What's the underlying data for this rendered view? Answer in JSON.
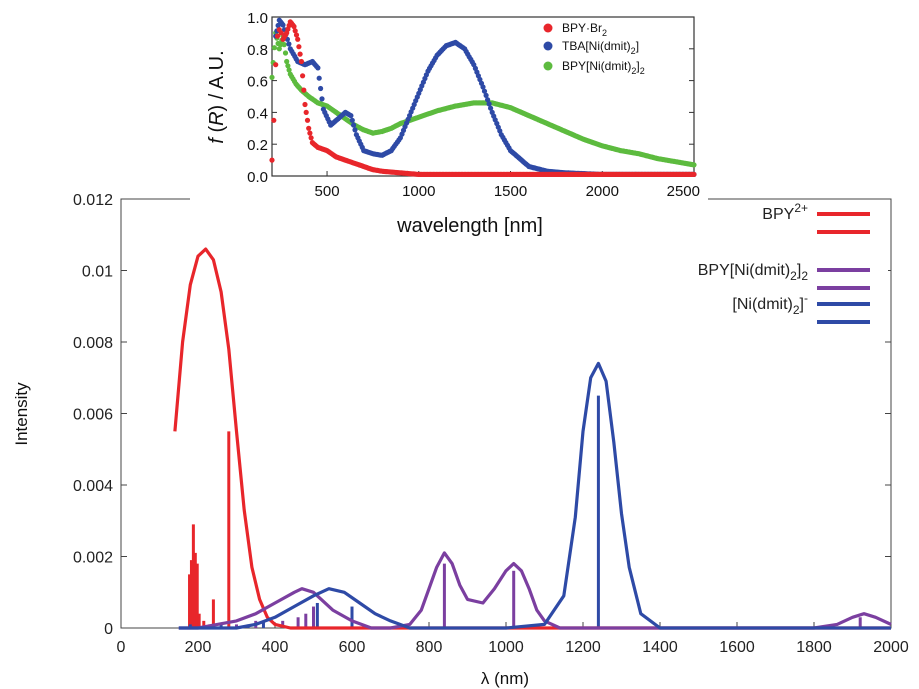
{
  "chart_data": [
    {
      "type": "line",
      "xlabel": "λ (nm)",
      "ylabel": "Intensity",
      "xlim": [
        0,
        2000
      ],
      "ylim": [
        0,
        0.012
      ],
      "x_ticks": [
        "0",
        "200",
        "400",
        "600",
        "800",
        "1000",
        "1200",
        "1400",
        "1600",
        "1800",
        "2000"
      ],
      "y_ticks": [
        "0",
        "0.002",
        "0.004",
        "0.006",
        "0.008",
        "0.01",
        "0.012"
      ],
      "legend_position": "top-right",
      "series": [
        {
          "name": "BPY2+",
          "legend_main": "BPY",
          "legend_sup": "2+",
          "color": "#e8262b",
          "envelope": [
            [
              140,
              0.0055
            ],
            [
              160,
              0.008
            ],
            [
              180,
              0.0096
            ],
            [
              200,
              0.0104
            ],
            [
              220,
              0.0106
            ],
            [
              240,
              0.0103
            ],
            [
              260,
              0.0094
            ],
            [
              280,
              0.0078
            ],
            [
              300,
              0.0055
            ],
            [
              320,
              0.0033
            ],
            [
              340,
              0.0017
            ],
            [
              360,
              0.0008
            ],
            [
              380,
              0.0003
            ],
            [
              400,
              0.0001
            ],
            [
              440,
              0.0
            ],
            [
              600,
              0.0
            ],
            [
              800,
              0.0
            ],
            [
              1000,
              0.0
            ],
            [
              1200,
              0.0
            ],
            [
              1400,
              0.0
            ],
            [
              1600,
              0.0
            ],
            [
              1800,
              0.0
            ],
            [
              2000,
              0.0
            ]
          ],
          "sticks": [
            [
              178,
              0.0015
            ],
            [
              183,
              0.0019
            ],
            [
              188,
              0.0029
            ],
            [
              193,
              0.0021
            ],
            [
              198,
              0.0018
            ],
            [
              203,
              0.0004
            ],
            [
              215,
              0.0002
            ],
            [
              230,
              0.0001
            ],
            [
              240,
              0.0008
            ],
            [
              280,
              0.0055
            ]
          ]
        },
        {
          "name": "BPY[Ni(dmit)2]2",
          "legend_main": "BPY[Ni(dmit)",
          "legend_sub": "2",
          "legend_end": "]",
          "legend_sub2": "2",
          "color": "#7b3fa0",
          "envelope": [
            [
              150,
              0.0
            ],
            [
              200,
              0.0
            ],
            [
              250,
              0.0001
            ],
            [
              300,
              0.0002
            ],
            [
              350,
              0.0004
            ],
            [
              400,
              0.0007
            ],
            [
              450,
              0.001
            ],
            [
              470,
              0.0011
            ],
            [
              500,
              0.001
            ],
            [
              550,
              0.0005
            ],
            [
              600,
              0.0002
            ],
            [
              650,
              0.0
            ],
            [
              700,
              0.0
            ],
            [
              750,
              0.0001
            ],
            [
              780,
              0.0005
            ],
            [
              800,
              0.0011
            ],
            [
              820,
              0.0017
            ],
            [
              840,
              0.0021
            ],
            [
              860,
              0.0018
            ],
            [
              880,
              0.0012
            ],
            [
              900,
              0.0008
            ],
            [
              940,
              0.0007
            ],
            [
              970,
              0.0011
            ],
            [
              1000,
              0.0016
            ],
            [
              1020,
              0.0018
            ],
            [
              1040,
              0.0016
            ],
            [
              1060,
              0.0011
            ],
            [
              1080,
              0.0005
            ],
            [
              1100,
              0.0002
            ],
            [
              1140,
              0.0
            ],
            [
              1200,
              0.0
            ],
            [
              1500,
              0.0
            ],
            [
              1800,
              0.0
            ],
            [
              1860,
              0.0001
            ],
            [
              1900,
              0.0003
            ],
            [
              1930,
              0.0004
            ],
            [
              1960,
              0.0003
            ],
            [
              2000,
              0.0001
            ]
          ],
          "sticks": [
            [
              300,
              0.0001
            ],
            [
              350,
              0.0002
            ],
            [
              420,
              0.0002
            ],
            [
              460,
              0.0003
            ],
            [
              480,
              0.0004
            ],
            [
              500,
              0.0006
            ],
            [
              840,
              0.0018
            ],
            [
              1020,
              0.0016
            ],
            [
              1920,
              0.0003
            ]
          ]
        },
        {
          "name": "[Ni(dmit)2]-",
          "legend_main": "[Ni(dmit)",
          "legend_sub": "2",
          "legend_end": "]",
          "legend_sup": "-",
          "color": "#2e4aa6",
          "envelope": [
            [
              150,
              0.0
            ],
            [
              250,
              0.0
            ],
            [
              300,
              0.0
            ],
            [
              350,
              0.0001
            ],
            [
              400,
              0.0003
            ],
            [
              450,
              0.0006
            ],
            [
              500,
              0.0009
            ],
            [
              540,
              0.0011
            ],
            [
              580,
              0.001
            ],
            [
              620,
              0.0007
            ],
            [
              660,
              0.0004
            ],
            [
              700,
              0.0002
            ],
            [
              750,
              0.0
            ],
            [
              800,
              0.0
            ],
            [
              1000,
              0.0
            ],
            [
              1100,
              0.0001
            ],
            [
              1150,
              0.0009
            ],
            [
              1180,
              0.0031
            ],
            [
              1200,
              0.0055
            ],
            [
              1220,
              0.007
            ],
            [
              1240,
              0.0074
            ],
            [
              1260,
              0.0069
            ],
            [
              1280,
              0.0052
            ],
            [
              1300,
              0.0032
            ],
            [
              1320,
              0.0017
            ],
            [
              1350,
              0.0004
            ],
            [
              1400,
              0.0
            ],
            [
              1600,
              0.0
            ],
            [
              2000,
              0.0
            ]
          ],
          "sticks": [
            [
              180,
              0.0001
            ],
            [
              260,
              0.0001
            ],
            [
              330,
              0.0001
            ],
            [
              370,
              0.0002
            ],
            [
              510,
              0.0007
            ],
            [
              600,
              0.0006
            ],
            [
              1240,
              0.0065
            ]
          ]
        }
      ]
    },
    {
      "type": "scatter",
      "xlabel": "wavelength [nm]",
      "ylabel": "f (R) / A.U.",
      "ylabel_italic": "f",
      "ylabel_paren_open": " (",
      "ylabel_italic2": "R",
      "ylabel_rest": ") / A.U.",
      "xlim": [
        200,
        2500
      ],
      "ylim": [
        0,
        1
      ],
      "x_ticks": [
        "500",
        "1000",
        "1500",
        "2000",
        "2500"
      ],
      "y_ticks": [
        "0.0",
        "0.2",
        "0.4",
        "0.6",
        "0.8",
        "1.0"
      ],
      "legend_position": "top-right",
      "series": [
        {
          "name": "BPY·Br2",
          "legend_main": "BPY·Br",
          "legend_sub": "2",
          "color": "#e8262b",
          "points": [
            [
              200,
              0.1
            ],
            [
              210,
              0.35
            ],
            [
              220,
              0.7
            ],
            [
              230,
              0.88
            ],
            [
              240,
              0.92
            ],
            [
              250,
              0.9
            ],
            [
              260,
              0.86
            ],
            [
              280,
              0.9
            ],
            [
              300,
              0.97
            ],
            [
              320,
              0.94
            ],
            [
              340,
              0.86
            ],
            [
              360,
              0.72
            ],
            [
              380,
              0.45
            ],
            [
              400,
              0.3
            ],
            [
              420,
              0.21
            ],
            [
              450,
              0.18
            ],
            [
              500,
              0.16
            ],
            [
              550,
              0.12
            ],
            [
              600,
              0.1
            ],
            [
              650,
              0.08
            ],
            [
              700,
              0.06
            ],
            [
              750,
              0.04
            ],
            [
              800,
              0.03
            ],
            [
              900,
              0.02
            ],
            [
              1000,
              0.01
            ],
            [
              1200,
              0.01
            ],
            [
              1500,
              0.01
            ],
            [
              1800,
              0.01
            ],
            [
              2100,
              0.01
            ],
            [
              2500,
              0.01
            ]
          ]
        },
        {
          "name": "TBA[Ni(dmit)2]",
          "legend_main": "TBA[Ni(dmit)",
          "legend_sub": "2",
          "legend_end": "]",
          "color": "#2e4aa6",
          "points": [
            [
              220,
              0.88
            ],
            [
              240,
              0.98
            ],
            [
              260,
              0.95
            ],
            [
              300,
              0.8
            ],
            [
              340,
              0.72
            ],
            [
              380,
              0.7
            ],
            [
              420,
              0.72
            ],
            [
              450,
              0.68
            ],
            [
              480,
              0.42
            ],
            [
              520,
              0.32
            ],
            [
              560,
              0.36
            ],
            [
              600,
              0.4
            ],
            [
              630,
              0.38
            ],
            [
              660,
              0.26
            ],
            [
              700,
              0.16
            ],
            [
              750,
              0.14
            ],
            [
              800,
              0.13
            ],
            [
              850,
              0.16
            ],
            [
              900,
              0.24
            ],
            [
              950,
              0.38
            ],
            [
              1000,
              0.52
            ],
            [
              1050,
              0.66
            ],
            [
              1100,
              0.76
            ],
            [
              1150,
              0.82
            ],
            [
              1200,
              0.84
            ],
            [
              1250,
              0.8
            ],
            [
              1300,
              0.7
            ],
            [
              1350,
              0.56
            ],
            [
              1400,
              0.4
            ],
            [
              1450,
              0.26
            ],
            [
              1500,
              0.16
            ],
            [
              1600,
              0.06
            ],
            [
              1700,
              0.03
            ],
            [
              1800,
              0.02
            ],
            [
              2000,
              0.01
            ],
            [
              2500,
              0.01
            ]
          ]
        },
        {
          "name": "BPY[Ni(dmit)2]2",
          "legend_main": "BPY[Ni(dmit)",
          "legend_sub": "2",
          "legend_end": "]",
          "legend_sub2": "2",
          "color": "#5dbb3f",
          "points": [
            [
              200,
              0.62
            ],
            [
              220,
              0.9
            ],
            [
              240,
              0.8
            ],
            [
              260,
              0.88
            ],
            [
              280,
              0.72
            ],
            [
              300,
              0.64
            ],
            [
              330,
              0.58
            ],
            [
              360,
              0.54
            ],
            [
              400,
              0.5
            ],
            [
              450,
              0.46
            ],
            [
              500,
              0.44
            ],
            [
              550,
              0.4
            ],
            [
              600,
              0.36
            ],
            [
              650,
              0.32
            ],
            [
              700,
              0.29
            ],
            [
              750,
              0.27
            ],
            [
              800,
              0.28
            ],
            [
              850,
              0.3
            ],
            [
              900,
              0.33
            ],
            [
              1000,
              0.37
            ],
            [
              1100,
              0.41
            ],
            [
              1200,
              0.44
            ],
            [
              1300,
              0.46
            ],
            [
              1400,
              0.46
            ],
            [
              1500,
              0.43
            ],
            [
              1600,
              0.38
            ],
            [
              1700,
              0.33
            ],
            [
              1800,
              0.28
            ],
            [
              1900,
              0.23
            ],
            [
              2000,
              0.19
            ],
            [
              2100,
              0.16
            ],
            [
              2200,
              0.14
            ],
            [
              2300,
              0.11
            ],
            [
              2400,
              0.09
            ],
            [
              2500,
              0.07
            ]
          ]
        }
      ]
    }
  ]
}
